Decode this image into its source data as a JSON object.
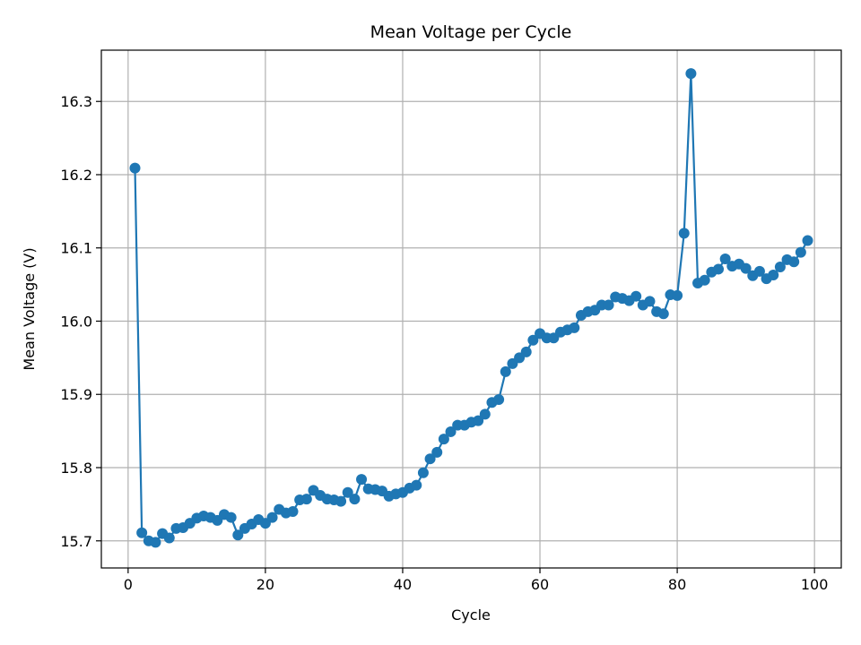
{
  "chart_data": {
    "type": "line",
    "title": "Mean Voltage per Cycle",
    "xlabel": "Cycle",
    "ylabel": "Mean Voltage (V)",
    "xlim": [
      -3.9,
      103.9
    ],
    "ylim": [
      15.663,
      16.37
    ],
    "xticks": [
      0,
      20,
      40,
      60,
      80,
      100
    ],
    "yticks": [
      15.7,
      15.8,
      15.9,
      16.0,
      16.1,
      16.2,
      16.3
    ],
    "xtick_labels": [
      "0",
      "20",
      "40",
      "60",
      "80",
      "100"
    ],
    "ytick_labels": [
      "15.7",
      "15.8",
      "15.9",
      "16.0",
      "16.1",
      "16.2",
      "16.3"
    ],
    "grid": true,
    "color": "#1f77b4",
    "marker": "circle",
    "series": [
      {
        "x": [
          1,
          2,
          3,
          4,
          5,
          6,
          7,
          8,
          9,
          10,
          11,
          12,
          13,
          14,
          15,
          16,
          17,
          18,
          19,
          20,
          21,
          22,
          23,
          24,
          25,
          26,
          27,
          28,
          29,
          30,
          31,
          32,
          33,
          34,
          35,
          36,
          37,
          38,
          39,
          40,
          41,
          42,
          43,
          44,
          45,
          46,
          47,
          48,
          49,
          50,
          51,
          52,
          53,
          54,
          55,
          56,
          57,
          58,
          59,
          60,
          61,
          62,
          63,
          64,
          65,
          66,
          67,
          68,
          69,
          70,
          71,
          72,
          73,
          74,
          75,
          76,
          77,
          78,
          79,
          80,
          81,
          82,
          83,
          84,
          85,
          86,
          87,
          88,
          89,
          90,
          91,
          92,
          93,
          94,
          95,
          96,
          97,
          98,
          99
        ],
        "values": [
          16.209,
          15.711,
          15.7,
          15.698,
          15.71,
          15.704,
          15.717,
          15.718,
          15.724,
          15.731,
          15.734,
          15.732,
          15.728,
          15.736,
          15.732,
          15.708,
          15.717,
          15.723,
          15.729,
          15.724,
          15.732,
          15.743,
          15.738,
          15.74,
          15.756,
          15.757,
          15.769,
          15.762,
          15.757,
          15.756,
          15.754,
          15.766,
          15.757,
          15.784,
          15.771,
          15.77,
          15.768,
          15.761,
          15.764,
          15.766,
          15.772,
          15.776,
          15.793,
          15.812,
          15.821,
          15.839,
          15.849,
          15.858,
          15.858,
          15.862,
          15.864,
          15.873,
          15.889,
          15.893,
          15.931,
          15.942,
          15.95,
          15.958,
          15.974,
          15.983,
          15.977,
          15.977,
          15.985,
          15.988,
          15.991,
          16.008,
          16.013,
          16.015,
          16.022,
          16.022,
          16.033,
          16.031,
          16.028,
          16.034,
          16.022,
          16.027,
          16.013,
          16.01,
          16.036,
          16.035,
          16.12,
          16.338,
          16.052,
          16.056,
          16.067,
          16.071,
          16.085,
          16.075,
          16.078,
          16.072,
          16.062,
          16.068,
          16.058,
          16.063,
          16.074,
          16.084,
          16.081,
          16.094,
          16.11
        ]
      }
    ]
  }
}
